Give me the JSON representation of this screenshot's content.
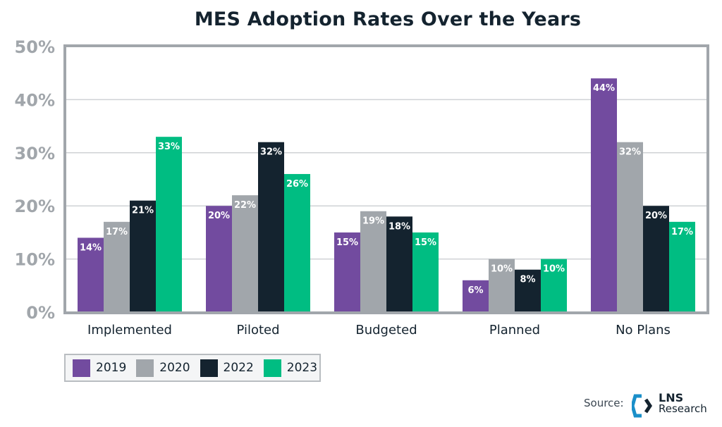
{
  "chart_data": {
    "type": "bar",
    "title": "MES Adoption Rates Over the Years",
    "xlabel": "",
    "ylabel": "",
    "ylim": [
      0,
      50
    ],
    "yticks": [
      "0%",
      "10%",
      "20%",
      "30%",
      "40%",
      "50%"
    ],
    "ytick_values": [
      0,
      10,
      20,
      30,
      40,
      50
    ],
    "grid": true,
    "legend_position": "bottom-left",
    "categories": [
      "Implemented",
      "Piloted",
      "Budgeted",
      "Planned",
      "No Plans"
    ],
    "series": [
      {
        "name": "2019",
        "color": "#724b9f",
        "values": [
          14,
          20,
          15,
          6,
          44
        ],
        "labels": [
          "14%",
          "20%",
          "15%",
          "6%",
          "44%"
        ]
      },
      {
        "name": "2020",
        "color": "#a1a6ab",
        "values": [
          17,
          22,
          19,
          10,
          32
        ],
        "labels": [
          "17%",
          "22%",
          "19%",
          "10%",
          "32%"
        ]
      },
      {
        "name": "2022",
        "color": "#14232f",
        "values": [
          21,
          32,
          18,
          8,
          20
        ],
        "labels": [
          "21%",
          "32%",
          "18%",
          "8%",
          "20%"
        ]
      },
      {
        "name": "2023",
        "color": "#00bd82",
        "values": [
          33,
          26,
          15,
          10,
          17
        ],
        "labels": [
          "33%",
          "26%",
          "15%",
          "10%",
          "17%"
        ]
      }
    ]
  },
  "footer": {
    "source_label": "Source:",
    "logo_line1": "LNS",
    "logo_line2": "Research",
    "logo_colors": {
      "left": "#1a8fc9",
      "right": "#14232f"
    }
  }
}
